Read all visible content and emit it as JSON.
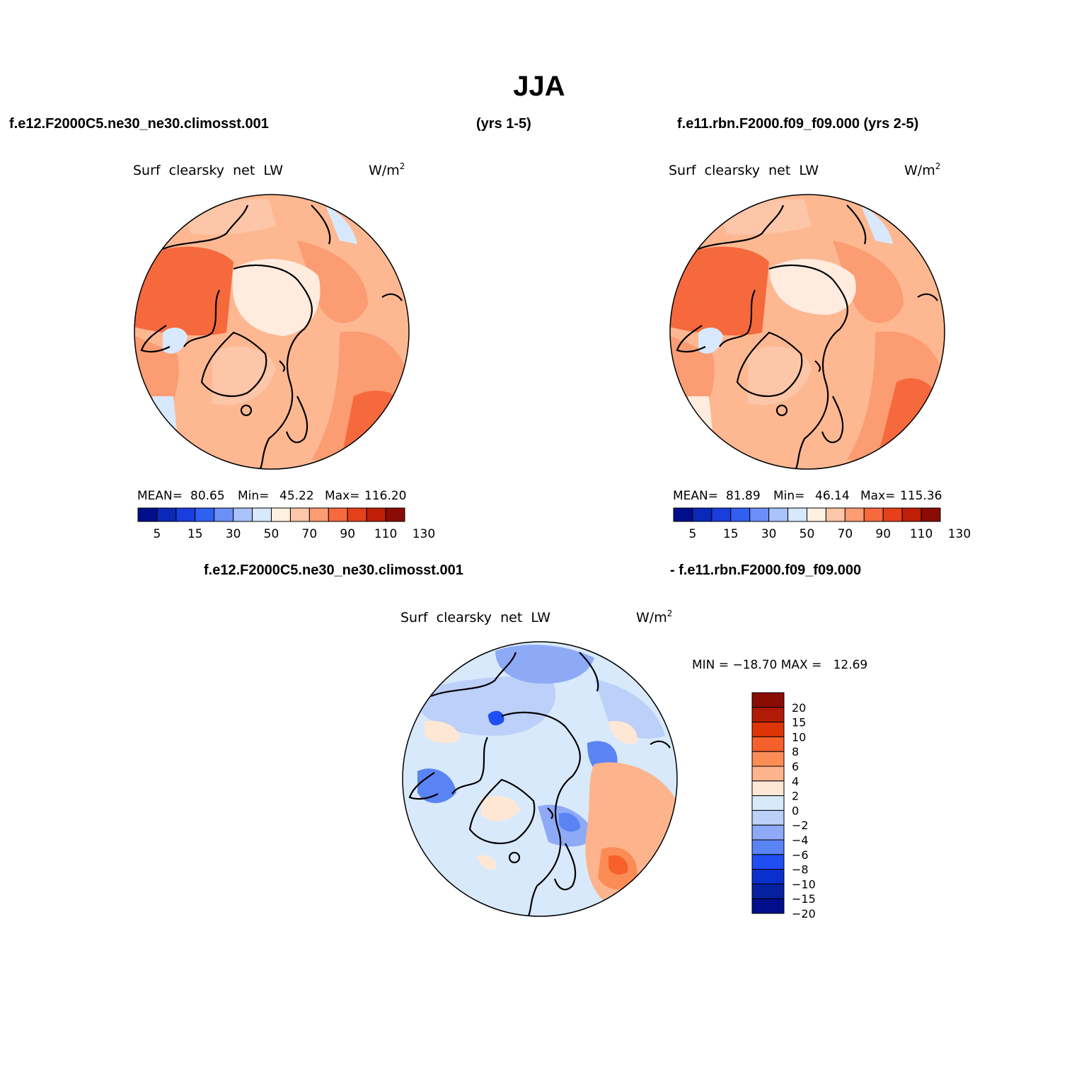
{
  "page": {
    "title": "JJA",
    "top_left_case": "f.e12.F2000C5.ne30_ne30.climosst.001",
    "top_left_years": "(yrs 1-5)",
    "top_right_case": "f.e11.rbn.F2000.f09_f09.000 (yrs 2-5)",
    "diff_case_a": "f.e12.F2000C5.ne30_ne30.climosst.001",
    "diff_case_b": "- f.e11.rbn.F2000.f09_f09.000"
  },
  "panels": {
    "left": {
      "variable": "Surf  clearsky  net  LW",
      "units_base": "W/m",
      "units_exp": "2",
      "stats_mean_label": "MEAN=",
      "stats_mean": "80.65",
      "stats_min_label": "Min=",
      "stats_min": "45.22",
      "stats_max_label": "Max=",
      "stats_max": "116.20",
      "scalar_mean": 80.65,
      "scalar_min": 45.22,
      "scalar_max": 116.2
    },
    "right": {
      "variable": "Surf  clearsky  net  LW",
      "units_base": "W/m",
      "units_exp": "2",
      "stats_mean_label": "MEAN=",
      "stats_mean": "81.89",
      "stats_min_label": "Min=",
      "stats_min": "46.14",
      "stats_max_label": "Max=",
      "stats_max": "115.36",
      "scalar_mean": 81.89,
      "scalar_min": 46.14,
      "scalar_max": 115.36
    },
    "diff": {
      "variable": "Surf  clearsky  net  LW",
      "units_base": "W/m",
      "units_exp": "2",
      "stats": "MIN = −18.70 MAX =   12.69",
      "scalar_min": -18.7,
      "scalar_max": 12.69
    }
  },
  "colorbars": {
    "abs_labels": [
      "5",
      "15",
      "30",
      "50",
      "70",
      "90",
      "110",
      "130"
    ],
    "abs_colors": [
      "#000e8c",
      "#0a29b8",
      "#1a3ddd",
      "#3060f2",
      "#6b8ff6",
      "#a9c2fa",
      "#d8e8fd",
      "#fff0e2",
      "#fdc6a8",
      "#fb9c72",
      "#f6693d",
      "#e6401b",
      "#c02008",
      "#8a0c04"
    ],
    "diff_labels": [
      "20",
      "15",
      "10",
      "8",
      "6",
      "4",
      "2",
      "0",
      "−2",
      "−4",
      "−6",
      "−8",
      "−10",
      "−15",
      "−20"
    ],
    "diff_colors": [
      "#8a0c04",
      "#b01a06",
      "#de3508",
      "#f6602b",
      "#fb8c56",
      "#fdb48c",
      "#ffe7d6",
      "#d8e9fb",
      "#bcd0f9",
      "#8eaaf7",
      "#5a83f4",
      "#1f4ef3",
      "#0a2fcc",
      "#06219f",
      "#000e8c"
    ]
  }
}
